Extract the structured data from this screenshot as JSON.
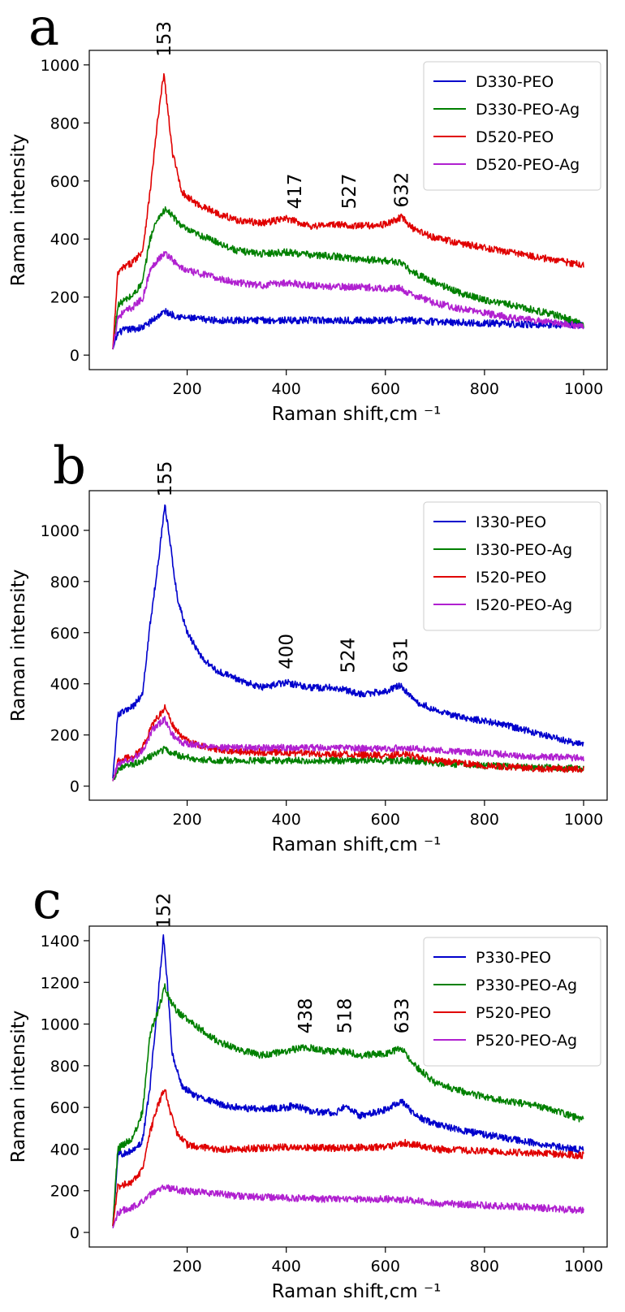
{
  "chart_data": [
    {
      "type": "line",
      "panel_label": "a",
      "xlabel": "Raman shift,cm ⁻¹",
      "ylabel": "Raman intensity",
      "xlim": [
        50,
        1000
      ],
      "ylim": [
        0,
        1000
      ],
      "xticks": [
        200,
        400,
        600,
        800,
        1000
      ],
      "yticks": [
        0,
        200,
        400,
        600,
        800,
        1000
      ],
      "grid": false,
      "legend_position": "top-right",
      "annotations": [
        {
          "text": "153",
          "x": 153,
          "y": 1000
        },
        {
          "text": "417",
          "x": 417,
          "y": 475
        },
        {
          "text": "527",
          "x": 527,
          "y": 475
        },
        {
          "text": "632",
          "x": 632,
          "y": 480
        }
      ],
      "series": [
        {
          "name": "D330-PEO",
          "color": "#0000cc",
          "x": [
            50,
            60,
            70,
            90,
            110,
            130,
            145,
            155,
            170,
            190,
            220,
            260,
            300,
            400,
            500,
            600,
            650,
            700,
            800,
            900,
            1000
          ],
          "y": [
            20,
            75,
            85,
            90,
            95,
            120,
            140,
            150,
            140,
            130,
            125,
            120,
            120,
            120,
            120,
            120,
            120,
            115,
            110,
            105,
            105
          ]
        },
        {
          "name": "D330-PEO-Ag",
          "color": "#008000",
          "x": [
            50,
            60,
            70,
            90,
            110,
            125,
            140,
            155,
            165,
            180,
            200,
            230,
            260,
            300,
            350,
            400,
            450,
            500,
            550,
            600,
            630,
            650,
            700,
            750,
            800,
            850,
            900,
            950,
            1000
          ],
          "y": [
            20,
            170,
            185,
            205,
            250,
            400,
            470,
            500,
            490,
            460,
            430,
            410,
            390,
            360,
            350,
            355,
            345,
            340,
            330,
            325,
            320,
            290,
            250,
            215,
            190,
            175,
            155,
            135,
            105
          ]
        },
        {
          "name": "D520-PEO",
          "color": "#e00000",
          "x": [
            50,
            60,
            70,
            90,
            110,
            125,
            140,
            153,
            160,
            170,
            190,
            220,
            260,
            300,
            350,
            400,
            450,
            500,
            550,
            600,
            632,
            660,
            700,
            750,
            800,
            850,
            900,
            950,
            1000
          ],
          "y": [
            20,
            280,
            300,
            320,
            360,
            560,
            800,
            970,
            860,
            700,
            560,
            520,
            490,
            465,
            455,
            470,
            445,
            450,
            445,
            450,
            475,
            430,
            405,
            385,
            370,
            355,
            340,
            325,
            310
          ]
        },
        {
          "name": "D520-PEO-Ag",
          "color": "#b020d0",
          "x": [
            50,
            60,
            70,
            90,
            110,
            125,
            140,
            155,
            165,
            180,
            200,
            230,
            260,
            300,
            350,
            400,
            450,
            500,
            550,
            600,
            630,
            650,
            700,
            750,
            800,
            850,
            900,
            950,
            1000
          ],
          "y": [
            20,
            130,
            145,
            165,
            195,
            290,
            330,
            350,
            340,
            310,
            290,
            280,
            265,
            250,
            240,
            250,
            240,
            235,
            235,
            230,
            230,
            210,
            180,
            160,
            145,
            130,
            120,
            110,
            100
          ]
        }
      ]
    },
    {
      "type": "line",
      "panel_label": "b",
      "xlabel": "Raman shift,cm ⁻¹",
      "ylabel": "Raman intensity",
      "xlim": [
        50,
        1000
      ],
      "ylim": [
        0,
        1100
      ],
      "xticks": [
        200,
        400,
        600,
        800,
        1000
      ],
      "yticks": [
        0,
        200,
        400,
        600,
        800,
        1000
      ],
      "grid": false,
      "legend_position": "top-right",
      "annotations": [
        {
          "text": "155",
          "x": 155,
          "y": 1100
        },
        {
          "text": "400",
          "x": 400,
          "y": 425
        },
        {
          "text": "524",
          "x": 524,
          "y": 410
        },
        {
          "text": "631",
          "x": 631,
          "y": 410
        }
      ],
      "series": [
        {
          "name": "I330-PEO",
          "color": "#0000cc",
          "x": [
            50,
            60,
            70,
            90,
            110,
            125,
            140,
            155,
            165,
            180,
            200,
            230,
            260,
            300,
            350,
            400,
            450,
            500,
            550,
            600,
            631,
            660,
            700,
            750,
            800,
            850,
            900,
            950,
            1000
          ],
          "y": [
            30,
            280,
            290,
            310,
            360,
            630,
            850,
            1100,
            960,
            740,
            600,
            500,
            450,
            420,
            385,
            405,
            385,
            385,
            360,
            370,
            395,
            330,
            300,
            270,
            255,
            235,
            210,
            185,
            160
          ]
        },
        {
          "name": "I330-PEO-Ag",
          "color": "#008000",
          "x": [
            50,
            60,
            70,
            90,
            110,
            130,
            145,
            155,
            170,
            190,
            220,
            260,
            300,
            400,
            500,
            600,
            650,
            700,
            800,
            900,
            1000
          ],
          "y": [
            20,
            65,
            75,
            85,
            100,
            120,
            135,
            145,
            130,
            115,
            105,
            100,
            100,
            100,
            100,
            100,
            100,
            90,
            80,
            75,
            70
          ]
        },
        {
          "name": "I520-PEO",
          "color": "#e00000",
          "x": [
            50,
            60,
            70,
            90,
            110,
            130,
            145,
            155,
            170,
            190,
            220,
            260,
            300,
            400,
            500,
            600,
            640,
            700,
            800,
            900,
            1000
          ],
          "y": [
            20,
            95,
            105,
            115,
            150,
            240,
            280,
            310,
            240,
            190,
            160,
            145,
            135,
            130,
            125,
            120,
            125,
            100,
            80,
            70,
            65
          ]
        },
        {
          "name": "I520-PEO-Ag",
          "color": "#b020d0",
          "x": [
            50,
            60,
            70,
            90,
            110,
            130,
            145,
            155,
            170,
            190,
            220,
            260,
            300,
            400,
            500,
            600,
            630,
            700,
            800,
            900,
            1000
          ],
          "y": [
            20,
            85,
            95,
            105,
            140,
            220,
            245,
            260,
            200,
            170,
            160,
            150,
            150,
            150,
            150,
            145,
            150,
            140,
            130,
            115,
            110
          ]
        }
      ]
    },
    {
      "type": "line",
      "panel_label": "c",
      "xlabel": "Raman shift,cm ⁻¹",
      "ylabel": "Raman intensity",
      "xlim": [
        50,
        1000
      ],
      "ylim": [
        0,
        1400
      ],
      "xticks": [
        200,
        400,
        600,
        800,
        1000
      ],
      "yticks": [
        0,
        200,
        400,
        600,
        800,
        1000,
        1200,
        1400
      ],
      "grid": false,
      "legend_position": "top-right",
      "annotations": [
        {
          "text": "152",
          "x": 152,
          "y": 1420
        },
        {
          "text": "438",
          "x": 438,
          "y": 915
        },
        {
          "text": "518",
          "x": 518,
          "y": 915
        },
        {
          "text": "633",
          "x": 633,
          "y": 915
        }
      ],
      "series": [
        {
          "name": "P330-PEO",
          "color": "#0000cc",
          "x": [
            50,
            60,
            70,
            90,
            110,
            125,
            140,
            152,
            160,
            170,
            190,
            220,
            260,
            300,
            350,
            400,
            420,
            450,
            500,
            518,
            550,
            600,
            633,
            660,
            700,
            750,
            800,
            850,
            900,
            950,
            1000
          ],
          "y": [
            30,
            370,
            380,
            390,
            440,
            700,
            1100,
            1420,
            1200,
            850,
            700,
            650,
            620,
            600,
            590,
            600,
            610,
            580,
            575,
            600,
            560,
            590,
            630,
            560,
            520,
            490,
            470,
            450,
            430,
            410,
            395
          ]
        },
        {
          "name": "P330-PEO-Ag",
          "color": "#008000",
          "x": [
            50,
            60,
            70,
            90,
            110,
            125,
            140,
            155,
            165,
            180,
            200,
            230,
            260,
            300,
            350,
            400,
            438,
            480,
            518,
            550,
            600,
            633,
            660,
            700,
            750,
            800,
            850,
            900,
            950,
            1000
          ],
          "y": [
            30,
            400,
            420,
            450,
            580,
            950,
            1050,
            1180,
            1120,
            1060,
            1020,
            970,
            920,
            880,
            850,
            870,
            890,
            870,
            870,
            850,
            860,
            880,
            800,
            720,
            680,
            650,
            630,
            610,
            580,
            540
          ]
        },
        {
          "name": "P520-PEO",
          "color": "#e00000",
          "x": [
            50,
            60,
            70,
            90,
            110,
            125,
            140,
            155,
            165,
            180,
            200,
            230,
            260,
            300,
            400,
            500,
            600,
            640,
            700,
            800,
            900,
            1000
          ],
          "y": [
            30,
            220,
            230,
            245,
            300,
            480,
            600,
            700,
            580,
            470,
            420,
            410,
            400,
            400,
            410,
            405,
            410,
            430,
            400,
            390,
            380,
            370
          ]
        },
        {
          "name": "P520-PEO-Ag",
          "color": "#b020d0",
          "x": [
            50,
            60,
            70,
            90,
            110,
            130,
            145,
            155,
            170,
            190,
            220,
            260,
            300,
            400,
            500,
            600,
            650,
            700,
            800,
            900,
            1000
          ],
          "y": [
            20,
            95,
            105,
            120,
            150,
            190,
            210,
            220,
            210,
            200,
            195,
            185,
            175,
            165,
            160,
            160,
            155,
            140,
            130,
            120,
            105
          ]
        }
      ]
    }
  ]
}
